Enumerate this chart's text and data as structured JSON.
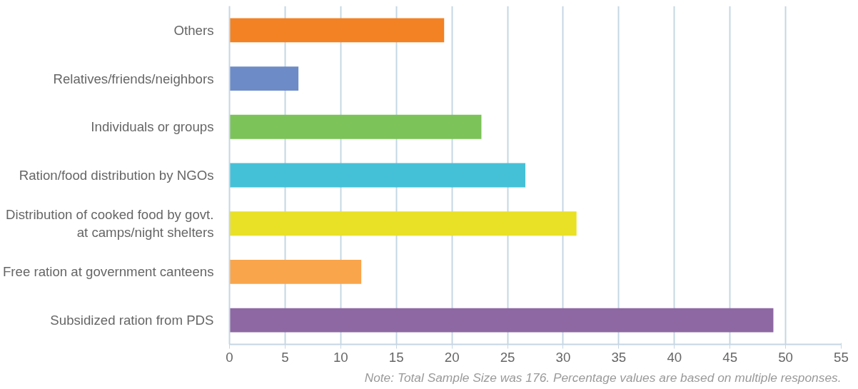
{
  "chart_data": {
    "type": "bar",
    "orientation": "horizontal",
    "categories": [
      "Others",
      "Relatives/friends/neighbors",
      "Individuals or groups",
      "Ration/food distribution by NGOs",
      "Distribution of cooked food by govt.\nat camps/night shelters",
      "Free ration at government canteens",
      "Subsidized ration from PDS"
    ],
    "values": [
      19.3,
      6.2,
      22.65,
      26.6,
      31.2,
      11.85,
      48.9
    ],
    "colors": [
      "#f28224",
      "#6d8bc7",
      "#7cc359",
      "#45c1d7",
      "#e9e126",
      "#f9a54b",
      "#8e68a2"
    ],
    "xlim": [
      0,
      55
    ],
    "xticks": [
      0,
      5,
      10,
      15,
      20,
      25,
      30,
      35,
      40,
      45,
      50,
      55
    ],
    "grid": "x",
    "annotations": [
      "Note: Total Sample Size was 176. Percentage values are based on multiple responses."
    ]
  }
}
